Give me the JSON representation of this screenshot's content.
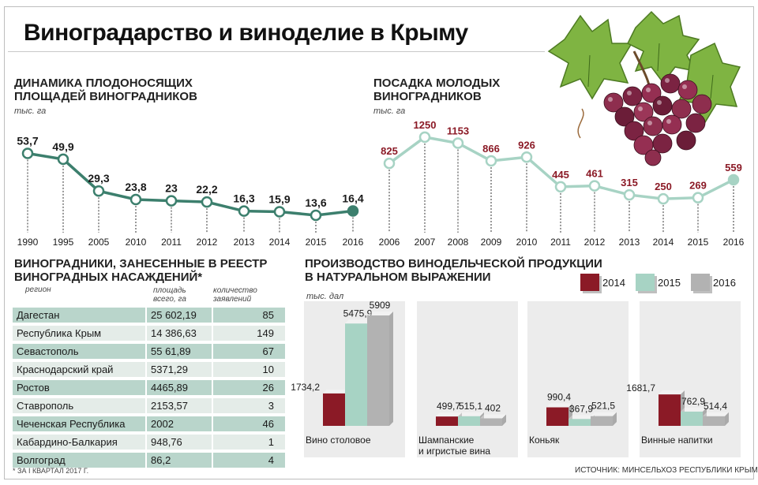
{
  "title": "Виноградарство и виноделие в Крыму",
  "colors": {
    "teal_dark": "#3c7f6d",
    "teal_light": "#a7d3c4",
    "bordeaux": "#8b1a26",
    "gray": "#b2b2b2",
    "label_dark": "#1a1a1a",
    "label_red": "#8b1a26"
  },
  "section1": {
    "title_line1": "ДИНАМИКА ПЛОДОНОСЯЩИХ",
    "title_line2": "ПЛОЩАДЕЙ ВИНОГРАДНИКОВ",
    "unit": "тыс. га"
  },
  "section2": {
    "title_line1": "ПОСАДКА МОЛОДЫХ",
    "title_line2": "ВИНОГРАДНИКОВ",
    "unit": "тыс. га"
  },
  "section3": {
    "title_line1": "ВИНОГРАДНИКИ, ЗАНЕСЕННЫЕ В РЕЕСТР",
    "title_line2": "ВИНОГРАДНЫХ НАСАЖДЕНИЙ*",
    "col_region": "регион",
    "col_area_line1": "площадь",
    "col_area_line2": "всего, га",
    "col_count_line1": "количество",
    "col_count_line2": "заявлений",
    "rows": [
      {
        "region": "Дагестан",
        "area": "25 602,19",
        "count": "85"
      },
      {
        "region": "Республика Крым",
        "area": "14 386,63",
        "count": "149"
      },
      {
        "region": "Севастополь",
        "area": "55 61,89",
        "count": "67"
      },
      {
        "region": "Краснодарский край",
        "area": "5371,29",
        "count": "10"
      },
      {
        "region": "Ростов",
        "area": "4465,89",
        "count": "26"
      },
      {
        "region": "Ставрополь",
        "area": "2153,57",
        "count": "3"
      },
      {
        "region": "Чеченская Республика",
        "area": "2002",
        "count": "46"
      },
      {
        "region": "Кабардино-Балкария",
        "area": "948,76",
        "count": "1"
      },
      {
        "region": "Волгоград",
        "area": "86,2",
        "count": "4"
      }
    ],
    "footnote": "* ЗА I КВАРТАЛ 2017 Г."
  },
  "section4": {
    "title_line1": "ПРОИЗВОДСТВО ВИНОДЕЛЬЧЕСКОЙ ПРОДУКЦИИ",
    "title_line2": "В НАТУРАЛЬНОМ ВЫРАЖЕНИИ",
    "unit": "тыс. дал"
  },
  "source": "ИСТОЧНИК: МИНСЕЛЬХОЗ РЕСПУБЛИКИ КРЫМ",
  "chart_data": [
    {
      "type": "line",
      "title": "ДИНАМИКА ПЛОДОНОСЯЩИХ ПЛОЩАДЕЙ ВИНОГРАДНИКОВ",
      "ylabel": "тыс. га",
      "x": [
        "1990",
        "1995",
        "2005",
        "2010",
        "2011",
        "2012",
        "2013",
        "2014",
        "2015",
        "2016"
      ],
      "values": [
        53.7,
        49.9,
        29.3,
        23.8,
        23,
        22.2,
        16.3,
        15.9,
        13.6,
        16.4
      ],
      "labels": [
        "53,7",
        "49,9",
        "29,3",
        "23,8",
        "23",
        "22,2",
        "16,3",
        "15,9",
        "13,6",
        "16,4"
      ],
      "ylim": [
        10,
        56
      ],
      "color": "#3c7f6d"
    },
    {
      "type": "line",
      "title": "ПОСАДКА МОЛОДЫХ ВИНОГРАДНИКОВ",
      "ylabel": "тыс. га",
      "x": [
        "2006",
        "2007",
        "2008",
        "2009",
        "2010",
        "2011",
        "2012",
        "2013",
        "2014",
        "2015",
        "2016"
      ],
      "values": [
        825,
        1250,
        1153,
        866,
        926,
        445,
        461,
        315,
        250,
        269,
        559
      ],
      "labels": [
        "825",
        "1250",
        "1153",
        "866",
        "926",
        "445",
        "461",
        "315",
        "250",
        "269",
        "559"
      ],
      "ylim": [
        150,
        1300
      ],
      "color": "#a7d3c4"
    },
    {
      "type": "bar",
      "title": "ПРОИЗВОДСТВО ВИНОДЕЛЬЧЕСКОЙ ПРОДУКЦИИ В НАТУРАЛЬНОМ ВЫРАЖЕНИИ",
      "ylabel": "тыс. дал",
      "categories": [
        "Вино столовое",
        "Шампанские и игристые вина",
        "Коньяк",
        "Винные напитки"
      ],
      "category_lines": [
        [
          "Вино столовое"
        ],
        [
          "Шампанские",
          "и игристые вина"
        ],
        [
          "Коньяк"
        ],
        [
          "Винные напитки"
        ]
      ],
      "series": [
        {
          "name": "2014",
          "values": [
            1734.2,
            499.7,
            990.4,
            1681.7
          ],
          "labels": [
            "1734,2",
            "499,7",
            "990,4",
            "1681,7"
          ],
          "color": "#8b1a26"
        },
        {
          "name": "2015",
          "values": [
            5475.9,
            515.1,
            367.9,
            762.9
          ],
          "labels": [
            "5475,9",
            "515,1",
            "367,9",
            "762,9"
          ],
          "color": "#a7d3c4"
        },
        {
          "name": "2016",
          "values": [
            5909,
            402,
            521.5,
            514.4
          ],
          "labels": [
            "5909",
            "402",
            "521,5",
            "514,4"
          ],
          "color": "#b2b2b2"
        }
      ],
      "ylim": [
        0,
        5909
      ],
      "legend": "top-right"
    }
  ]
}
